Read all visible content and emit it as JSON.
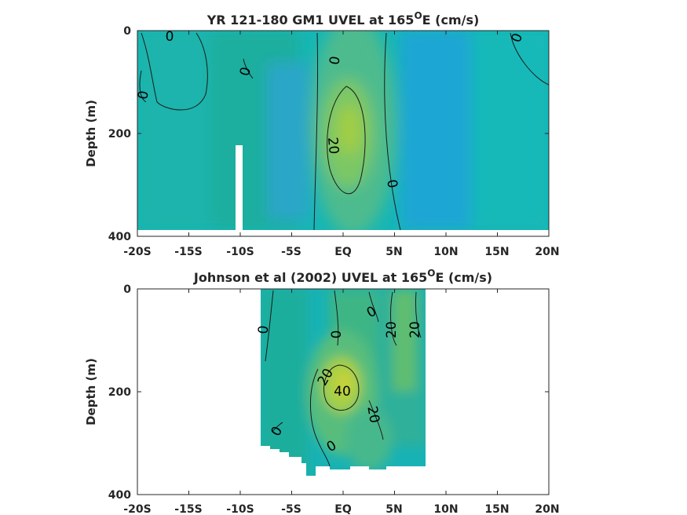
{
  "chart_data": [
    {
      "type": "heatmap",
      "title_main": "YR 121-180 GM1 UVEL at 165",
      "title_sup": "O",
      "title_end": "E (cm/s)",
      "xlabel": "",
      "ylabel": "Depth (m)",
      "xlim": [
        -20,
        20
      ],
      "ylim": [
        400,
        0
      ],
      "x_ticks": [
        "-20S",
        "-15S",
        "-10S",
        "-5S",
        "EQ",
        "5N",
        "10N",
        "15N",
        "20N"
      ],
      "y_ticks": [
        "0",
        "200",
        "400"
      ],
      "contour_labels": [
        "0",
        "0",
        "0",
        "0",
        "0",
        "20",
        "0"
      ],
      "core": {
        "lat": 0.5,
        "depth": 180,
        "value": 28
      },
      "grid": false
    },
    {
      "type": "heatmap",
      "title_main": "Johnson et al (2002) UVEL at 165",
      "title_sup": "O",
      "title_end": "E (cm/s)",
      "xlabel": "",
      "ylabel": "Depth (m)",
      "xlim": [
        -20,
        20
      ],
      "ylim": [
        400,
        0
      ],
      "data_lat_range": [
        -8,
        8
      ],
      "x_ticks": [
        "-20S",
        "-15S",
        "-10S",
        "-5S",
        "EQ",
        "5N",
        "10N",
        "15N",
        "20N"
      ],
      "y_ticks": [
        "0",
        "200",
        "400"
      ],
      "contour_labels": [
        "0",
        "0",
        "0",
        "20",
        "20",
        "20",
        "40",
        "20",
        "0",
        "0"
      ],
      "core": {
        "lat": 0,
        "depth": 190,
        "value": 45
      },
      "grid": false
    }
  ]
}
